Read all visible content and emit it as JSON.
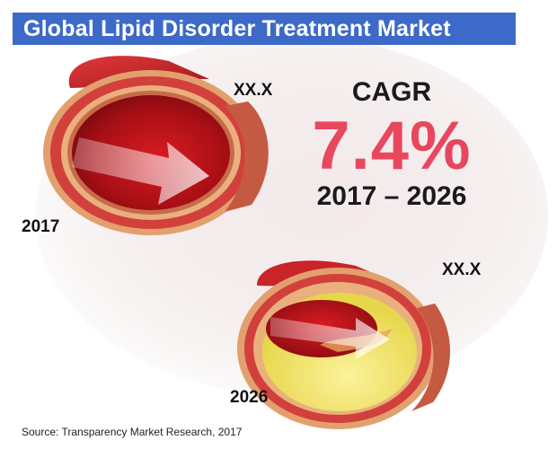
{
  "title": "Global Lipid Disorder Treatment Market",
  "artery_top": {
    "value_label": "XX.X",
    "year": "2017"
  },
  "artery_bottom": {
    "value_label": "XX.X",
    "year": "2026"
  },
  "cagr": {
    "label": "CAGR",
    "value": "7.4%",
    "period": "2017 – 2026"
  },
  "source": "Source: Transparency Market Research, 2017",
  "colors": {
    "title_bar": "#3d6ac8",
    "cagr_value": "#e8475e",
    "artery_red": "#c0131b",
    "plaque_yellow": "#f2e66a"
  }
}
